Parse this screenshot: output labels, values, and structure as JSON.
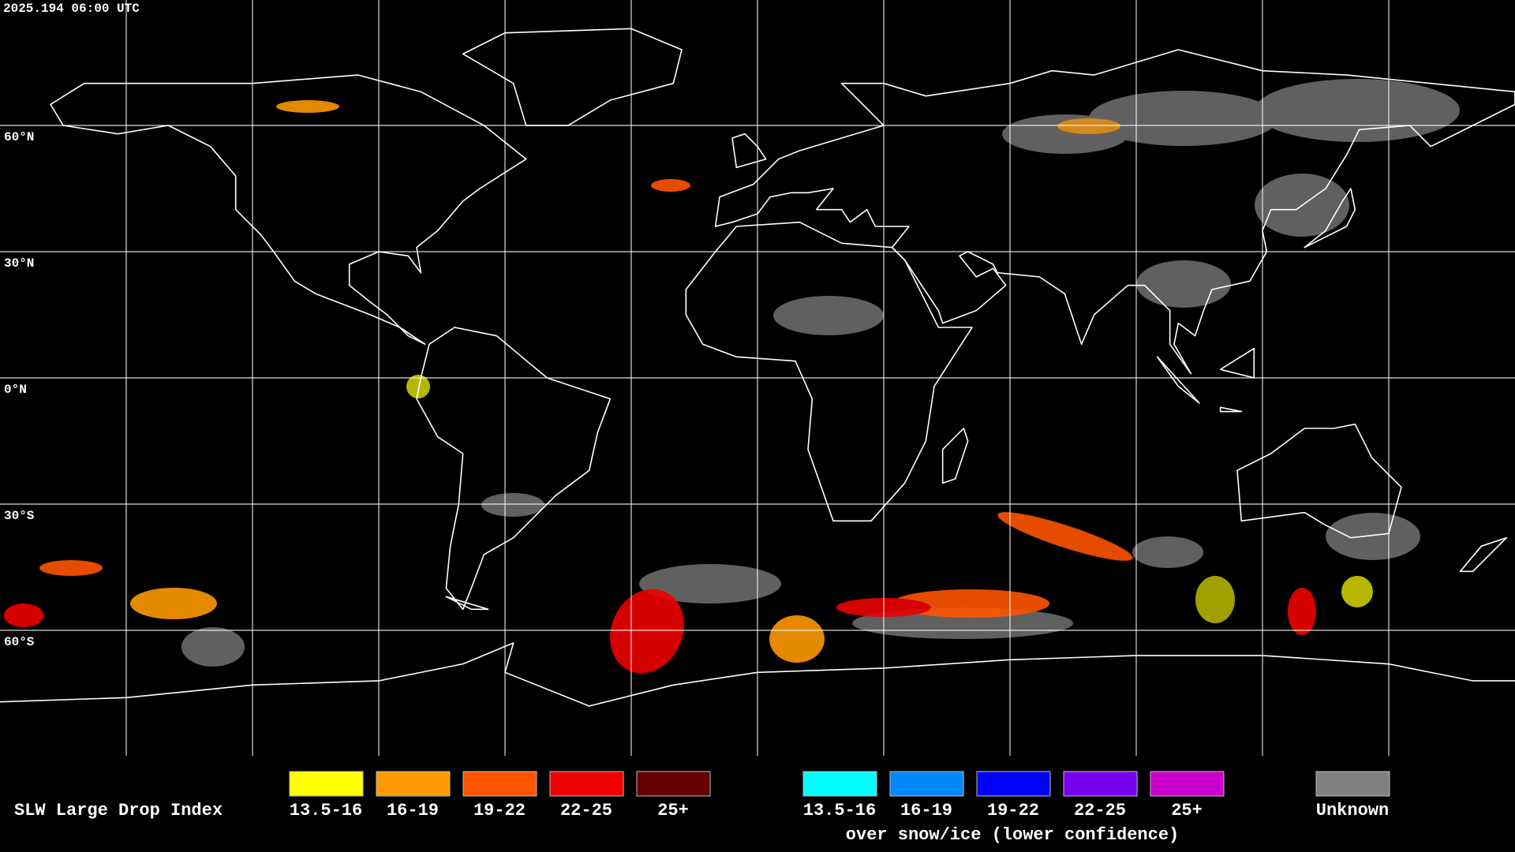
{
  "header": {
    "timestamp": "2025.194 06:00 UTC"
  },
  "map": {
    "lat_labels": [
      "60°N",
      "30°N",
      "0°N",
      "30°S",
      "60°S"
    ]
  },
  "legend": {
    "title": "SLW Large Drop Index",
    "groups": [
      {
        "items": [
          {
            "label": "13.5-16",
            "color": "#ffff00"
          },
          {
            "label": "16-19",
            "color": "#ff9900"
          },
          {
            "label": "19-22",
            "color": "#ff5500"
          },
          {
            "label": "22-25",
            "color": "#ee0000"
          },
          {
            "label": "25+",
            "color": "#660000"
          }
        ]
      },
      {
        "items": [
          {
            "label": "13.5-16",
            "color": "#00ffff"
          },
          {
            "label": "16-19",
            "color": "#0088ff"
          },
          {
            "label": "19-22",
            "color": "#0000ff"
          },
          {
            "label": "22-25",
            "color": "#7700ee"
          },
          {
            "label": "25+",
            "color": "#cc00cc"
          }
        ],
        "caption": "over snow/ice (lower confidence)"
      }
    ],
    "unknown": {
      "label": "Unknown",
      "color": "#808080"
    }
  }
}
